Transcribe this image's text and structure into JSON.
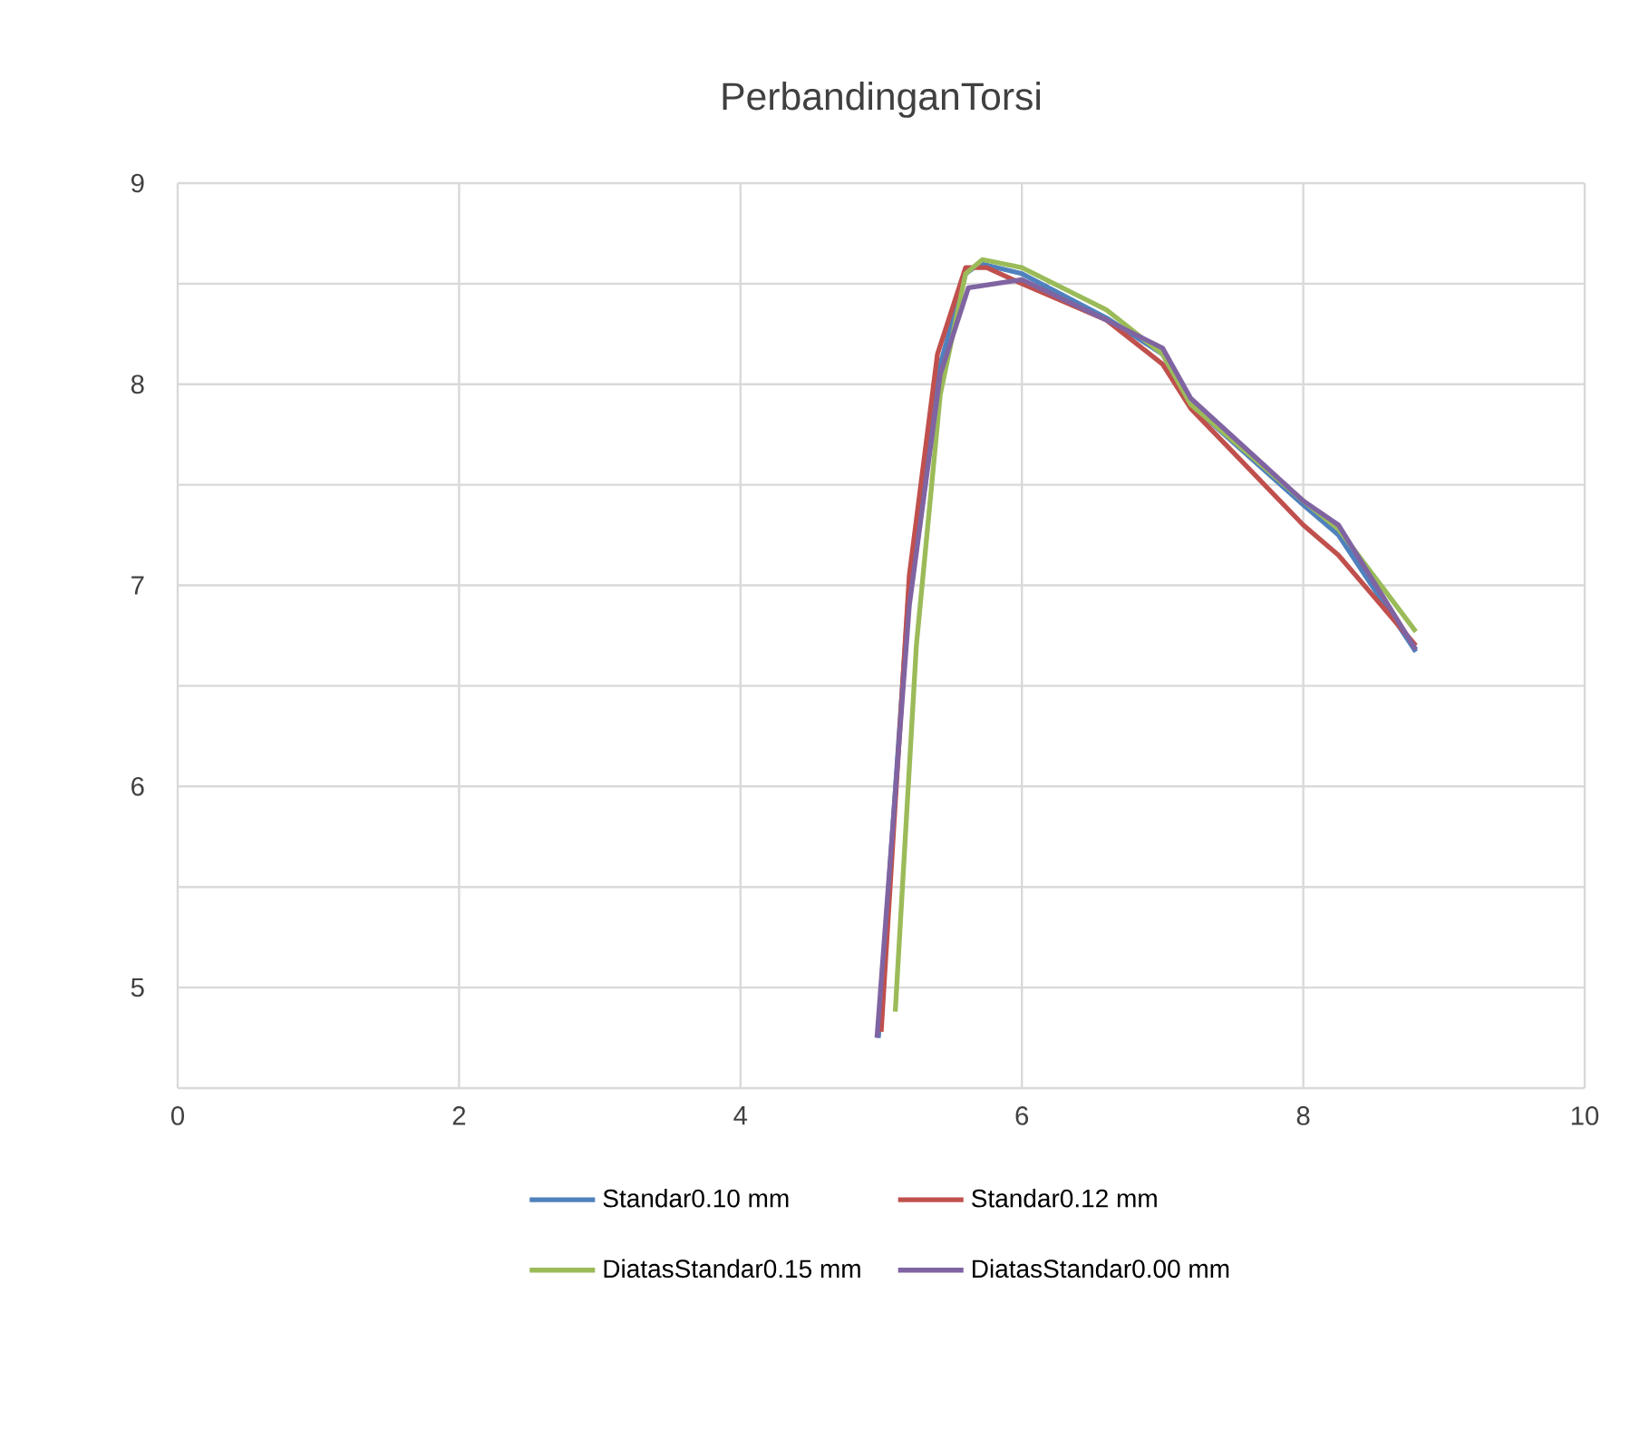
{
  "chart_data": {
    "type": "line",
    "title": "PerbandinganTorsi",
    "xlim": [
      0,
      10
    ],
    "xticks": [
      0,
      2,
      4,
      6,
      8,
      10
    ],
    "ylim": [
      4.5,
      9
    ],
    "yticks": [
      {
        "value": 4.5,
        "label": null
      },
      5,
      {
        "value": 5.5,
        "label": null
      },
      6,
      {
        "value": 6.5,
        "label": null
      },
      7,
      {
        "value": 7.5,
        "label": null
      },
      8,
      {
        "value": 8.5,
        "label": null
      },
      9
    ],
    "grid": true,
    "legend": "bottom",
    "marker": "none",
    "line_style": "solid",
    "series": [
      {
        "name": "Standar0.10 mm",
        "color": "#4f81bd",
        "x": [
          4.98,
          5.2,
          5.4,
          5.6,
          5.7,
          6.0,
          6.6,
          7.0,
          7.2,
          8.0,
          8.25,
          8.8
        ],
        "values": [
          4.75,
          7.0,
          8.05,
          8.55,
          8.6,
          8.55,
          8.33,
          8.15,
          7.9,
          7.4,
          7.25,
          6.67
        ]
      },
      {
        "name": "Standar0.12 mm",
        "color": "#c0504d",
        "x": [
          5.0,
          5.2,
          5.4,
          5.6,
          5.75,
          6.0,
          6.6,
          7.0,
          7.2,
          8.0,
          8.25,
          8.8
        ],
        "values": [
          4.78,
          7.05,
          8.15,
          8.58,
          8.58,
          8.5,
          8.32,
          8.1,
          7.88,
          7.3,
          7.15,
          6.7
        ]
      },
      {
        "name": "DiatasStandar0.15 mm",
        "color": "#9bbb59",
        "x": [
          5.1,
          5.25,
          5.42,
          5.6,
          5.72,
          6.0,
          6.6,
          7.0,
          7.2,
          8.0,
          8.25,
          8.8
        ],
        "values": [
          4.88,
          6.7,
          7.95,
          8.55,
          8.62,
          8.58,
          8.37,
          8.15,
          7.9,
          7.42,
          7.28,
          6.77
        ]
      },
      {
        "name": "DiatasStandar0.00 mm",
        "color": "#8064a2",
        "x": [
          4.97,
          5.2,
          5.42,
          5.62,
          6.0,
          6.6,
          7.0,
          7.2,
          8.0,
          8.25,
          8.8
        ],
        "values": [
          4.75,
          6.9,
          8.05,
          8.48,
          8.52,
          8.32,
          8.18,
          7.93,
          7.42,
          7.3,
          6.68
        ]
      }
    ]
  }
}
